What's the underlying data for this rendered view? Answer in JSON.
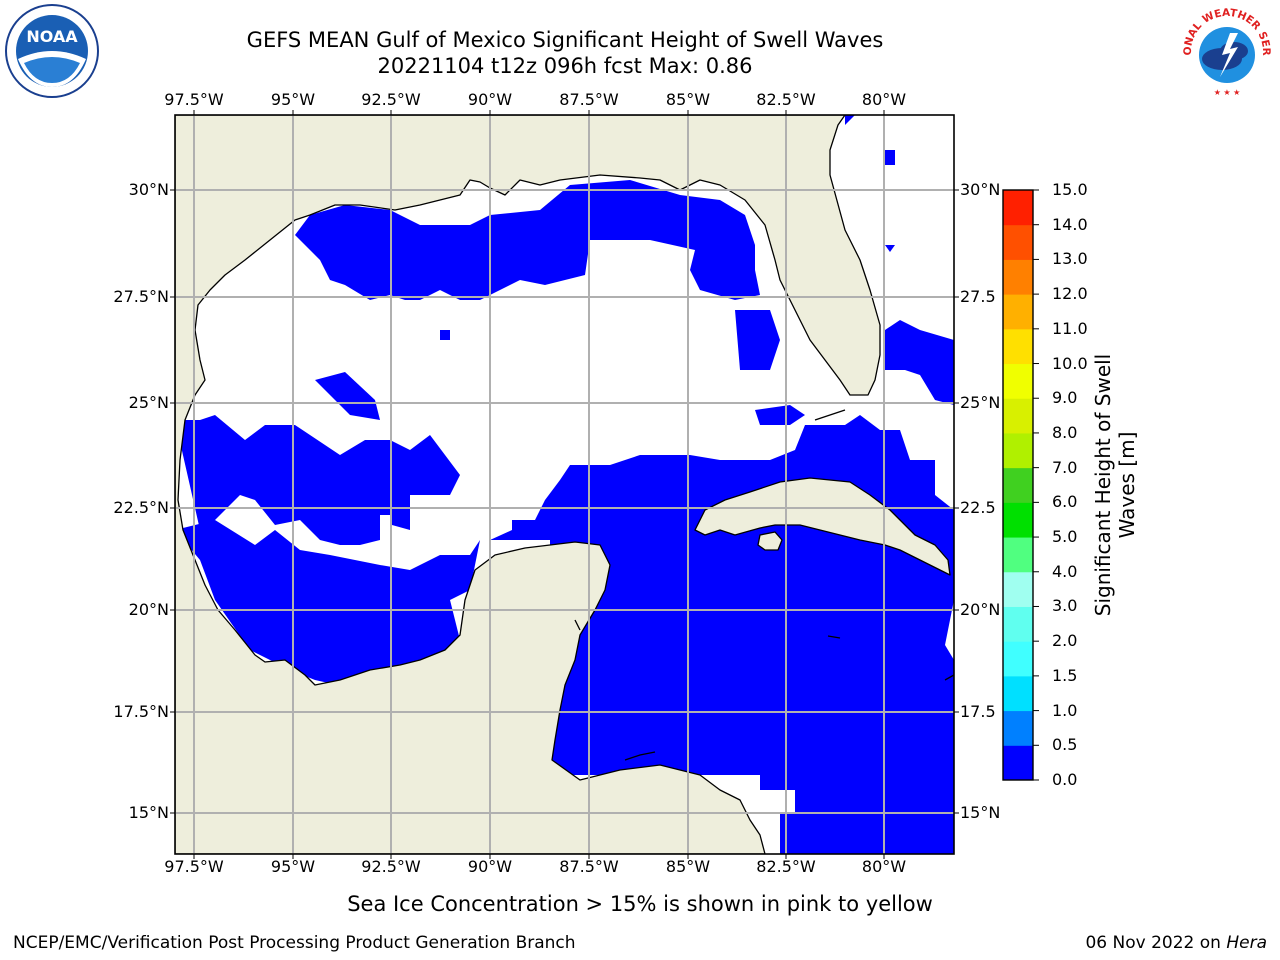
{
  "title_line1": "GEFS MEAN Gulf of Mexico Significant Height of Swell Waves",
  "title_line2": "20221104 t12z 096h fcst   Max: 0.86",
  "lon_ticks": [
    "97.5°W",
    "95°W",
    "92.5°W",
    "90°W",
    "87.5°W",
    "85°W",
    "82.5°W",
    "80°W"
  ],
  "lat_ticks": [
    "30°N",
    "27.5°N",
    "25°N",
    "22.5°N",
    "20°N",
    "17.5°N",
    "15°N"
  ],
  "lat_ticks_right": [
    "30°N",
    "27.5",
    "25°N",
    "22.5",
    "20°N",
    "17.5",
    "15°N"
  ],
  "colorbar": {
    "label_line1": "Significant Height of Swell",
    "label_line2": "Waves [m]",
    "tick_labels": [
      "0.0",
      "0.5",
      "1.0",
      "1.5",
      "2.0",
      "3.0",
      "4.0",
      "5.0",
      "6.0",
      "7.0",
      "8.0",
      "9.0",
      "10.0",
      "11.0",
      "12.0",
      "13.0",
      "14.0",
      "15.0"
    ],
    "colors": [
      "#0000ff",
      "#0080ff",
      "#00e0ff",
      "#40ffff",
      "#60ffef",
      "#a0fff0",
      "#50ff80",
      "#00e000",
      "#40d020",
      "#b0f000",
      "#d8f000",
      "#f0ff00",
      "#ffe000",
      "#ffb000",
      "#ff8000",
      "#ff5000",
      "#ff2000"
    ]
  },
  "note": "Sea Ice Concentration > 15% is shown in pink to yellow",
  "footer_left": "NCEP/EMC/Verification Post Processing Product Generation Branch",
  "footer_date": "06 Nov 2022 on",
  "footer_machine": "Hera",
  "logos": {
    "noaa_text": "NOAA",
    "nws_text": "NATIONAL WEATHER SERVICE"
  },
  "colors": {
    "land": "#eeeedc",
    "swell_low": "#0000ff",
    "swell_mid": "#0080ff",
    "grid": "#b0b0b0"
  }
}
